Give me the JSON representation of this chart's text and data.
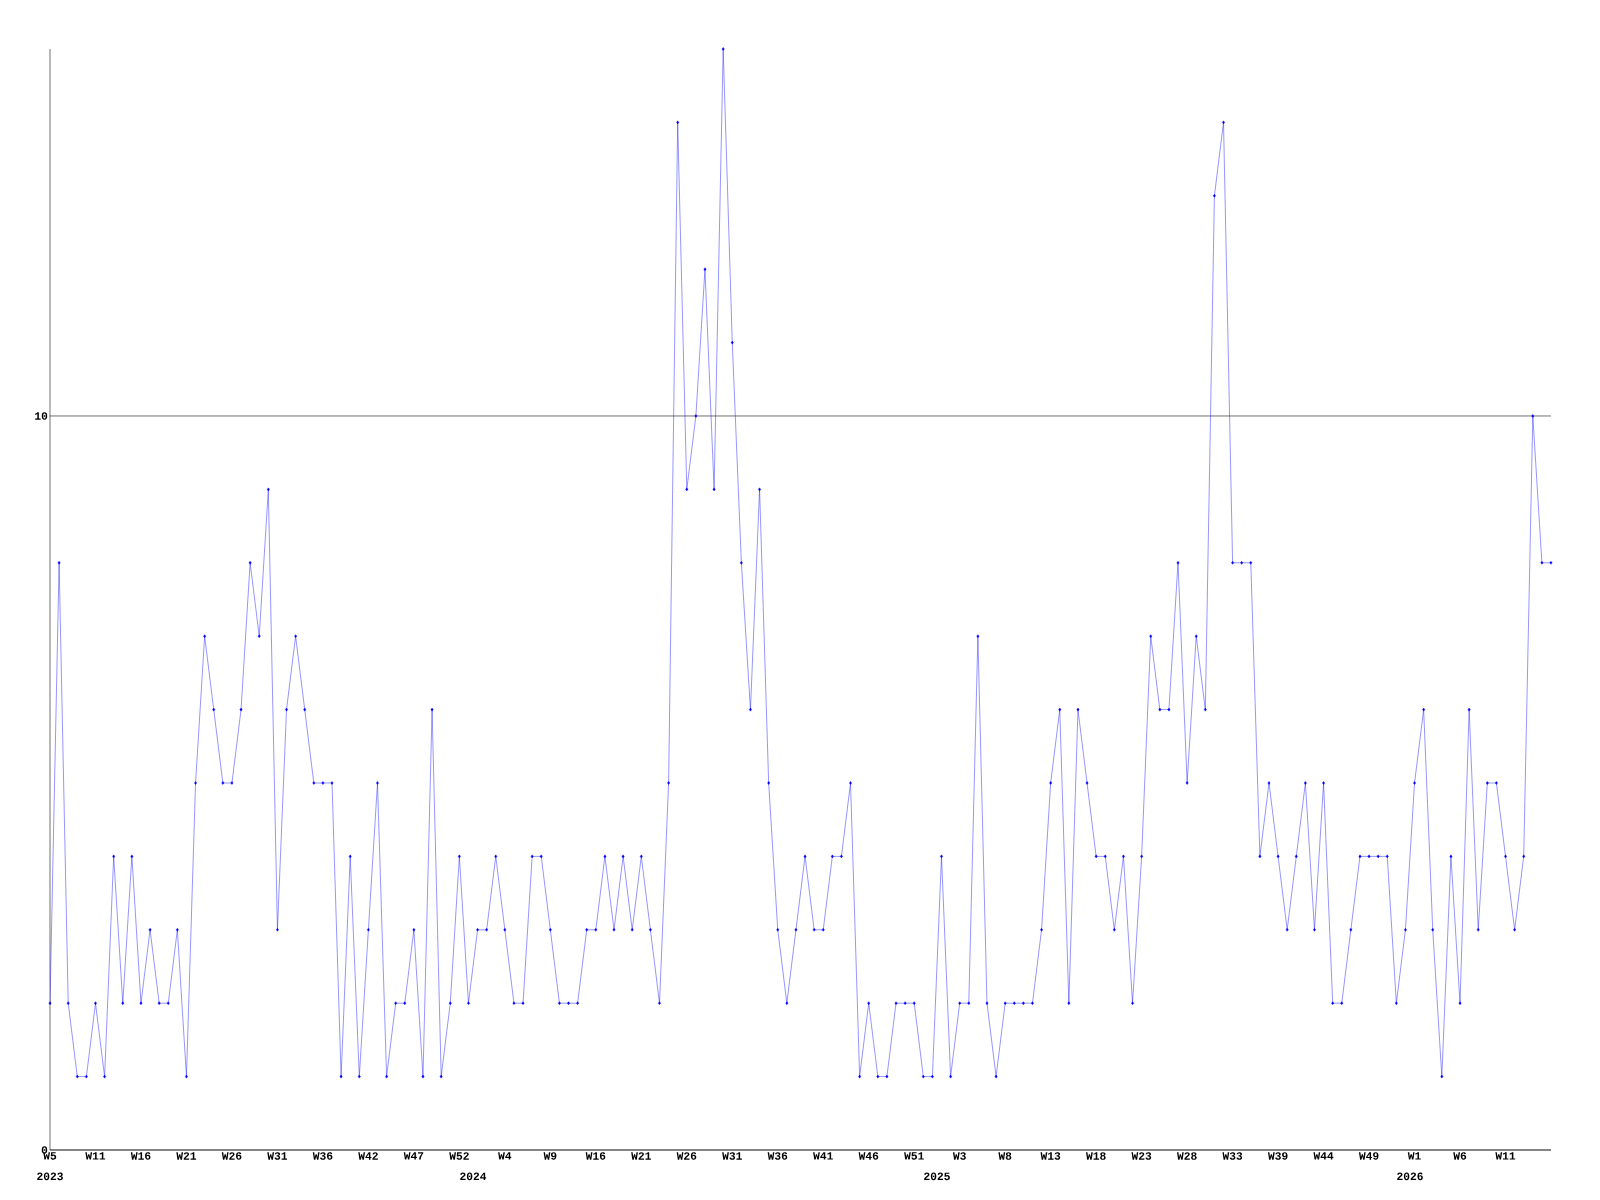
{
  "chart_data": {
    "type": "line",
    "color": "#0000ff",
    "marker": "diamond",
    "line_style": "solid",
    "grid": "y",
    "categories": [
      "W5",
      null,
      null,
      null,
      null,
      "W11",
      null,
      null,
      null,
      null,
      "W16",
      null,
      null,
      null,
      null,
      "W21",
      null,
      null,
      null,
      null,
      "W26",
      null,
      null,
      null,
      null,
      "W31",
      null,
      null,
      null,
      null,
      "W36",
      null,
      null,
      null,
      null,
      "W42",
      null,
      null,
      null,
      null,
      "W47",
      null,
      null,
      null,
      null,
      "W52",
      null,
      null,
      null,
      null,
      "W4",
      null,
      null,
      null,
      null,
      "W9",
      null,
      null,
      null,
      null,
      "W16",
      null,
      null,
      null,
      null,
      "W21",
      null,
      null,
      null,
      null,
      "W26",
      null,
      null,
      null,
      null,
      "W31",
      null,
      null,
      null,
      null,
      "W36",
      null,
      null,
      null,
      null,
      "W41",
      null,
      null,
      null,
      null,
      "W46",
      null,
      null,
      null,
      null,
      "W51",
      null,
      null,
      null,
      null,
      "W3",
      null,
      null,
      null,
      null,
      "W8",
      null,
      null,
      null,
      null,
      "W13",
      null,
      null,
      null,
      null,
      "W18",
      null,
      null,
      null,
      null,
      "W23",
      null,
      null,
      null,
      null,
      "W28",
      null,
      null,
      null,
      null,
      "W33",
      null,
      null,
      null,
      null,
      "W39",
      null,
      null,
      null,
      null,
      "W44",
      null,
      null,
      null,
      null,
      "W49",
      null,
      null,
      null,
      null,
      "W1",
      null,
      null,
      null,
      null,
      "W6",
      null,
      null,
      null,
      null,
      "W11",
      null,
      null,
      null,
      null,
      null
    ],
    "values": [
      2,
      8,
      2,
      1,
      1,
      2,
      1,
      4,
      2,
      4,
      2,
      3,
      2,
      2,
      3,
      1,
      5,
      7,
      6,
      5,
      5,
      6,
      8,
      7,
      9,
      3,
      6,
      7,
      6,
      5,
      5,
      5,
      1,
      4,
      1,
      3,
      5,
      1,
      2,
      2,
      3,
      1,
      6,
      1,
      2,
      4,
      2,
      3,
      3,
      4,
      3,
      2,
      2,
      4,
      4,
      3,
      2,
      2,
      2,
      3,
      3,
      4,
      3,
      4,
      3,
      4,
      3,
      2,
      5,
      14,
      9,
      10,
      12,
      9,
      15,
      11,
      8,
      6,
      9,
      5,
      3,
      2,
      3,
      4,
      3,
      3,
      4,
      4,
      5,
      1,
      2,
      1,
      1,
      2,
      2,
      2,
      1,
      1,
      4,
      1,
      2,
      2,
      7,
      2,
      1,
      2,
      2,
      2,
      2,
      3,
      5,
      6,
      2,
      6,
      5,
      4,
      4,
      3,
      4,
      2,
      4,
      7,
      6,
      6,
      8,
      5,
      7,
      6,
      13,
      14,
      8,
      8,
      8,
      4,
      5,
      4,
      3,
      4,
      5,
      3,
      5,
      2,
      2,
      3,
      4,
      4,
      4,
      4,
      2,
      3,
      5,
      6,
      3,
      1,
      4,
      2,
      6,
      3,
      5,
      5,
      4,
      3,
      4,
      10,
      8,
      8
    ],
    "ylim": [
      0,
      15
    ],
    "yticks": [
      0,
      10
    ],
    "annotations": [
      "2023",
      "2024",
      "2025",
      "2026"
    ]
  }
}
